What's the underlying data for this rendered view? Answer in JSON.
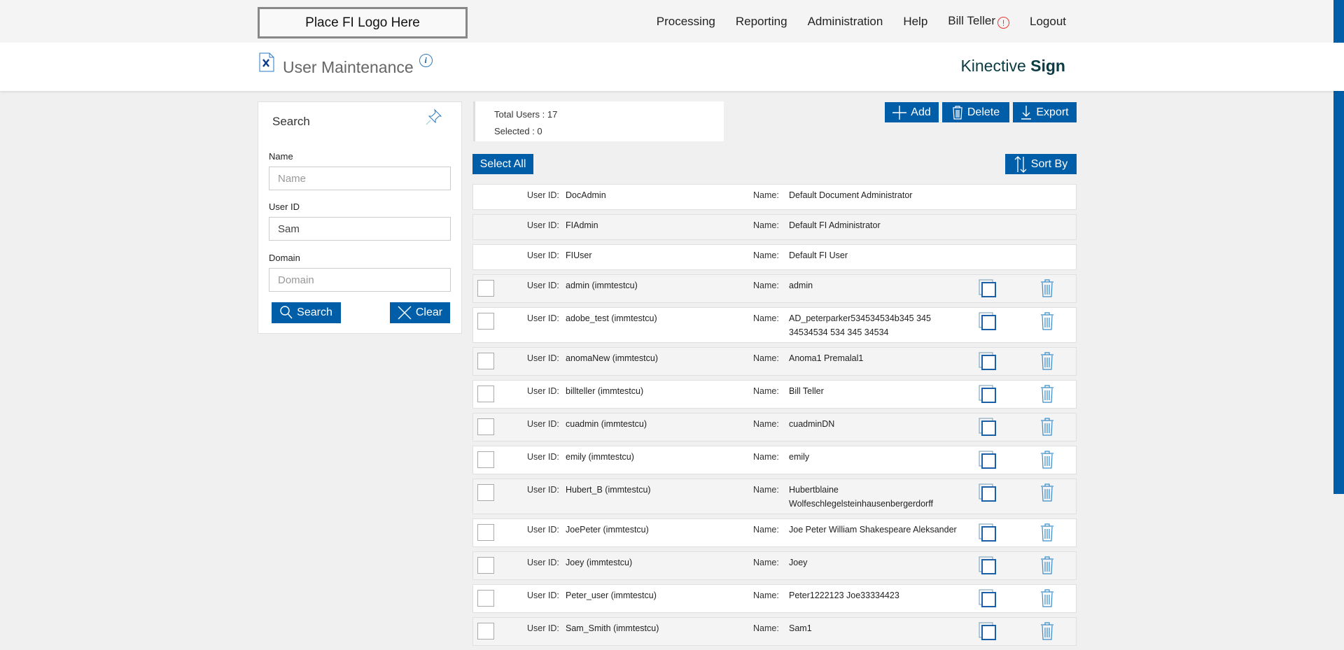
{
  "header": {
    "logo": "Place FI Logo Here",
    "nav": [
      "Processing",
      "Reporting",
      "Administration",
      "Help",
      "Bill Teller",
      "Logout"
    ],
    "alert_icon": "!"
  },
  "titlebar": {
    "title": "User Maintenance",
    "info": "i",
    "brand_light": "Kinective ",
    "brand_bold": "Sign"
  },
  "search": {
    "title": "Search",
    "name_label": "Name",
    "name_placeholder": "Name",
    "name_value": "",
    "userid_label": "User ID",
    "userid_value": "Sam",
    "domain_label": "Domain",
    "domain_placeholder": "Domain",
    "search_btn": "Search",
    "clear_btn": "Clear"
  },
  "summary": {
    "total": "Total Users : 17",
    "selected": "Selected : 0"
  },
  "toolbar": {
    "add": "Add",
    "delete": "Delete",
    "export": "Export",
    "select_all": "Select All",
    "sort_by": "Sort By"
  },
  "colors": {
    "accent": "#005ea8",
    "alert": "#e53935"
  },
  "list": {
    "userid_label": "User ID:",
    "name_label": "Name:",
    "rows": [
      {
        "id": "DocAdmin",
        "name": "Default Document Administrator",
        "editable": false
      },
      {
        "id": "FIAdmin",
        "name": "Default FI Administrator",
        "editable": false
      },
      {
        "id": "FIUser",
        "name": "Default FI User",
        "editable": false
      },
      {
        "id": "admin (immtestcu)",
        "name": "admin",
        "editable": true
      },
      {
        "id": "adobe_test (immtestcu)",
        "name": "AD_peterparker534534534b345 345 34534534 534 345 34534",
        "editable": true
      },
      {
        "id": "anomaNew (immtestcu)",
        "name": "Anoma1 Premalal1",
        "editable": true
      },
      {
        "id": "billteller (immtestcu)",
        "name": "Bill Teller",
        "editable": true
      },
      {
        "id": "cuadmin (immtestcu)",
        "name": "cuadminDN",
        "editable": true
      },
      {
        "id": "emily (immtestcu)",
        "name": "emily",
        "editable": true
      },
      {
        "id": "Hubert_B (immtestcu)",
        "name": "Hubertblaine Wolfeschlegelsteinhausenbergerdorff",
        "editable": true
      },
      {
        "id": "JoePeter (immtestcu)",
        "name": "Joe Peter William Shakespeare Aleksander",
        "editable": true
      },
      {
        "id": "Joey (immtestcu)",
        "name": "Joey",
        "editable": true
      },
      {
        "id": "Peter_user (immtestcu)",
        "name": "Peter1222123 Joe33334423",
        "editable": true
      },
      {
        "id": "Sam_Smith (immtestcu)",
        "name": "Sam1",
        "editable": true
      }
    ]
  }
}
